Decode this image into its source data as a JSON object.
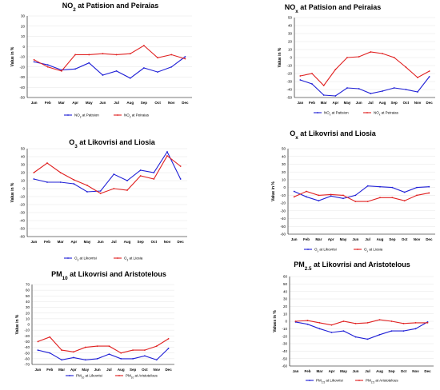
{
  "chart_data": [
    {
      "type": "line",
      "title": "NO2 at Patision and Peiraias",
      "ylabel": "Value in %",
      "ylim": [
        -50,
        30
      ],
      "yticks": [
        30,
        20,
        10,
        0,
        -10,
        -20,
        -30,
        -40,
        -50
      ],
      "categories": [
        "Jan",
        "Feb",
        "Mar",
        "Apr",
        "May",
        "Jun",
        "Jul",
        "Aug",
        "Sep",
        "Oct",
        "Nov",
        "Dec"
      ],
      "series": [
        {
          "name": "NO2 at Patision",
          "color": "#1f1fd6",
          "values": [
            -15,
            -18,
            -23,
            -22,
            -16,
            -28,
            -24,
            -31,
            -21,
            -25,
            -20,
            -10
          ]
        },
        {
          "name": "NO2 at Peiraias",
          "color": "#e02020",
          "values": [
            -13,
            -20,
            -24,
            -8,
            -8,
            -7,
            -8,
            -7,
            1,
            -11,
            -8,
            -12
          ]
        }
      ]
    },
    {
      "type": "line",
      "title": "NOx at Patision and Peiraias",
      "ylabel": "Value in %",
      "ylim": [
        -50,
        50
      ],
      "yticks": [
        50,
        40,
        30,
        20,
        10,
        0,
        -10,
        -20,
        -30,
        -40,
        -50
      ],
      "categories": [
        "Jan",
        "Feb",
        "Mar",
        "Apr",
        "May",
        "Jun",
        "Jul",
        "Aug",
        "Sep",
        "Oct",
        "Nov",
        "Dec"
      ],
      "series": [
        {
          "name": "NOx at Patision",
          "color": "#1f1fd6",
          "values": [
            -28,
            -33,
            -47,
            -48,
            -38,
            -39,
            -45,
            -42,
            -38,
            -40,
            -43,
            -24
          ]
        },
        {
          "name": "NOx at Peiraias",
          "color": "#e02020",
          "values": [
            -23,
            -20,
            -35,
            -15,
            0,
            1,
            7,
            5,
            0,
            -12,
            -25,
            -17
          ]
        }
      ]
    },
    {
      "type": "line",
      "title": "O3 at Likovrisi and Liosia",
      "ylabel": "Value in %",
      "ylim": [
        -60,
        50
      ],
      "yticks": [
        50,
        40,
        30,
        20,
        10,
        0,
        -10,
        -20,
        -30,
        -40,
        -50,
        -60
      ],
      "categories": [
        "Jan",
        "Feb",
        "Mar",
        "Apr",
        "May",
        "Jun",
        "Jul",
        "Aug",
        "Sep",
        "Oct",
        "Nov",
        "Dec"
      ],
      "series": [
        {
          "name": "O3 at Likovrisi",
          "color": "#1f1fd6",
          "values": [
            12,
            8,
            8,
            6,
            -4,
            -3,
            18,
            10,
            23,
            20,
            46,
            12
          ]
        },
        {
          "name": "O3 at Liosia",
          "color": "#e02020",
          "values": [
            20,
            32,
            20,
            11,
            4,
            -6,
            0,
            -2,
            16,
            12,
            41,
            28
          ]
        }
      ]
    },
    {
      "type": "line",
      "title": "Ox at Likovrisi and Liosia",
      "ylabel": "Value in %",
      "ylim": [
        -60,
        50
      ],
      "yticks": [
        50,
        40,
        30,
        20,
        10,
        0,
        -10,
        -20,
        -30,
        -40,
        -50,
        -60
      ],
      "categories": [
        "Jan",
        "Feb",
        "Mar",
        "Apr",
        "May",
        "Jun",
        "Jul",
        "Aug",
        "Sep",
        "Oct",
        "Nov",
        "Dec"
      ],
      "series": [
        {
          "name": "Ox at Likovrisi",
          "color": "#1f1fd6",
          "values": [
            -5,
            -12,
            -17,
            -11,
            -14,
            -10,
            2,
            1,
            0,
            -6,
            0,
            1
          ]
        },
        {
          "name": "Ox at Liosia",
          "color": "#e02020",
          "values": [
            -12,
            -5,
            -10,
            -9,
            -10,
            -18,
            -18,
            -13,
            -13,
            -17,
            -10,
            -7
          ]
        }
      ]
    },
    {
      "type": "line",
      "title": "PM10 at Likovrisi and Aristotelous",
      "ylabel": "Value in %",
      "ylim": [
        -70,
        70
      ],
      "yticks": [
        70,
        60,
        50,
        40,
        30,
        20,
        10,
        0,
        -10,
        -20,
        -30,
        -40,
        -50,
        -60,
        -70
      ],
      "categories": [
        "Jan",
        "Feb",
        "Mar",
        "Apr",
        "May",
        "Jun",
        "Jul",
        "Aug",
        "Sep",
        "Oct",
        "Nov",
        "Dec"
      ],
      "series": [
        {
          "name": "PM10 at Likovrisi",
          "color": "#1f1fd6",
          "values": [
            -45,
            -50,
            -62,
            -58,
            -62,
            -60,
            -52,
            -60,
            -60,
            -55,
            -62,
            -42
          ]
        },
        {
          "name": "PM10 at Aristotelous",
          "color": "#e02020",
          "values": [
            -30,
            -22,
            -45,
            -48,
            -40,
            -38,
            -38,
            -50,
            -45,
            -45,
            -38,
            -25
          ]
        }
      ]
    },
    {
      "type": "line",
      "title": "PM2.5 at Likovrisi and Aristotelous",
      "ylabel": "Values in %",
      "ylim": [
        -60,
        60
      ],
      "yticks": [
        60,
        50,
        40,
        30,
        20,
        10,
        0,
        -10,
        -20,
        -30,
        -40,
        -50,
        -60
      ],
      "categories": [
        "Jan",
        "Feb",
        "Mar",
        "Apr",
        "May",
        "Jun",
        "Jul",
        "Aug",
        "Sep",
        "Oct",
        "Nov",
        "Dec"
      ],
      "series": [
        {
          "name": "PM2.5 at Likovrisi",
          "color": "#1f1fd6",
          "values": [
            -1,
            -4,
            -10,
            -15,
            -13,
            -21,
            -24,
            -18,
            -13,
            -13,
            -10,
            -1
          ]
        },
        {
          "name": "PM2.5 at Aristotelous",
          "color": "#e02020",
          "values": [
            0,
            1,
            -2,
            -5,
            0,
            -3,
            -2,
            2,
            0,
            -3,
            -2,
            -2
          ]
        }
      ]
    }
  ]
}
